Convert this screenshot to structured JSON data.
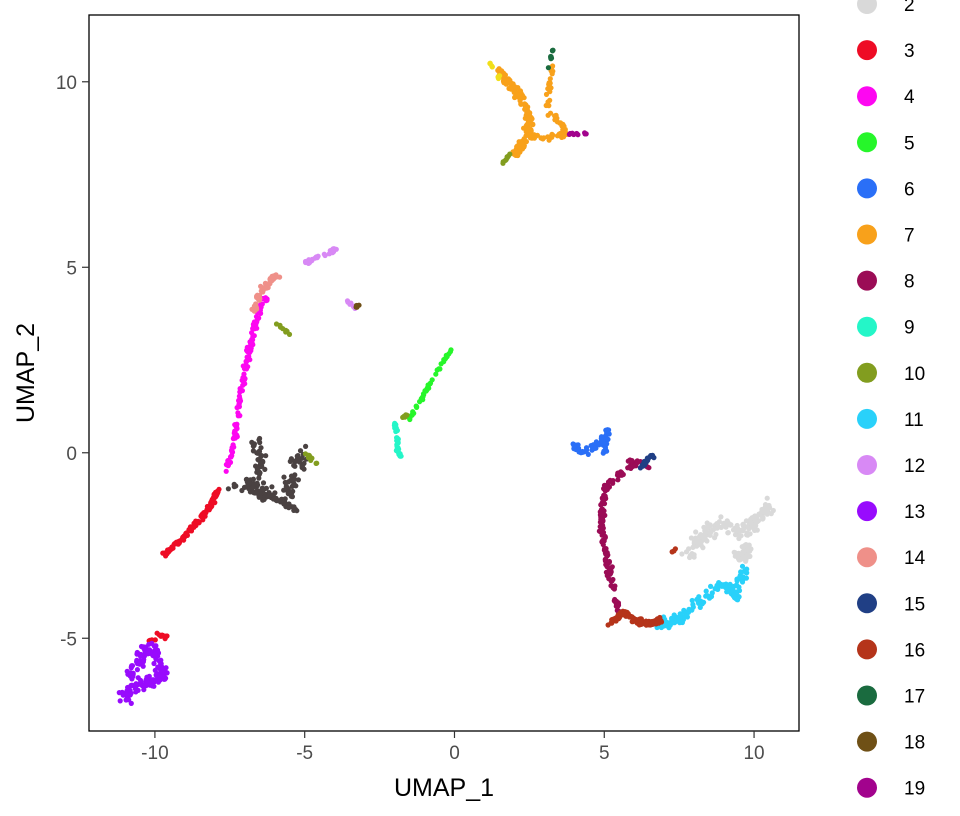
{
  "chart_data": {
    "type": "scatter",
    "xlabel": "UMAP_1",
    "ylabel": "UMAP_2",
    "xlim": [
      -12.2,
      11.5
    ],
    "ylim": [
      -7.5,
      11.8
    ],
    "x_ticks": [
      -10,
      -5,
      0,
      5,
      10
    ],
    "x_tick_labels": [
      "-10",
      "-5",
      "0",
      "5",
      "10"
    ],
    "y_ticks": [
      -5,
      0,
      5,
      10
    ],
    "y_tick_labels": [
      "-5",
      "0",
      "5",
      "10"
    ],
    "grid": false,
    "legend_position": "right",
    "legend": [
      {
        "label": "2",
        "color": "#d9d9d9"
      },
      {
        "label": "3",
        "color": "#ee0c25"
      },
      {
        "label": "4",
        "color": "#fd07f1"
      },
      {
        "label": "5",
        "color": "#26f62a"
      },
      {
        "label": "6",
        "color": "#2a6ff7"
      },
      {
        "label": "7",
        "color": "#f8a11b"
      },
      {
        "label": "8",
        "color": "#9b0c56"
      },
      {
        "label": "9",
        "color": "#24f6c8"
      },
      {
        "label": "10",
        "color": "#829d1f"
      },
      {
        "label": "11",
        "color": "#29d1fa"
      },
      {
        "label": "12",
        "color": "#d889f5"
      },
      {
        "label": "13",
        "color": "#980bfd"
      },
      {
        "label": "14",
        "color": "#ef9089"
      },
      {
        "label": "15",
        "color": "#203f85"
      },
      {
        "label": "16",
        "color": "#b5341a"
      },
      {
        "label": "17",
        "color": "#1a6b3f"
      },
      {
        "label": "18",
        "color": "#6f5016"
      },
      {
        "label": "19",
        "color": "#a2038d"
      }
    ],
    "extra_series_colors": {
      "1": "#4a4242"
    },
    "clusters": [
      {
        "name": "1",
        "color": "#4a4242",
        "n": 130,
        "polyline": [
          [
            -6.6,
            0.2
          ],
          [
            -6.4,
            -0.3
          ],
          [
            -6.8,
            -0.9
          ],
          [
            -6.2,
            -1.2
          ],
          [
            -5.6,
            -1.1
          ],
          [
            -5.3,
            -0.4
          ],
          [
            -5.0,
            0.0
          ]
        ],
        "spread": 0.35
      },
      {
        "name": "1b",
        "color": "#4a4242",
        "n": 40,
        "polyline": [
          [
            -7.5,
            -0.9
          ],
          [
            -6.8,
            -1.0
          ],
          [
            -5.8,
            -1.3
          ],
          [
            -5.2,
            -1.6
          ]
        ],
        "spread": 0.15
      },
      {
        "name": "2",
        "color": "#d9d9d9",
        "n": 150,
        "polyline": [
          [
            7.8,
            -2.7
          ],
          [
            8.4,
            -2.1
          ],
          [
            9.0,
            -1.9
          ],
          [
            9.6,
            -2.2
          ],
          [
            10.3,
            -1.6
          ],
          [
            10.6,
            -1.5
          ]
        ],
        "spread": 0.32
      },
      {
        "name": "2b",
        "color": "#d9d9d9",
        "n": 40,
        "polyline": [
          [
            9.4,
            -2.6
          ],
          [
            9.6,
            -2.9
          ],
          [
            9.8,
            -2.5
          ]
        ],
        "spread": 0.25
      },
      {
        "name": "3",
        "color": "#ee0c25",
        "n": 110,
        "polyline": [
          [
            -9.8,
            -2.8
          ],
          [
            -9.2,
            -2.4
          ],
          [
            -8.6,
            -1.9
          ],
          [
            -8.1,
            -1.4
          ],
          [
            -7.9,
            -1.0
          ]
        ],
        "spread": 0.1
      },
      {
        "name": "3b",
        "color": "#ee0c25",
        "n": 12,
        "polyline": [
          [
            -10.2,
            -5.1
          ],
          [
            -9.9,
            -4.9
          ],
          [
            -9.6,
            -5.0
          ]
        ],
        "spread": 0.1
      },
      {
        "name": "4",
        "color": "#fd07f1",
        "n": 120,
        "polyline": [
          [
            -7.6,
            -0.5
          ],
          [
            -7.3,
            0.5
          ],
          [
            -7.2,
            1.2
          ],
          [
            -7.0,
            2.2
          ],
          [
            -6.8,
            3.0
          ],
          [
            -6.6,
            3.6
          ],
          [
            -6.3,
            4.2
          ]
        ],
        "spread": 0.12
      },
      {
        "name": "5",
        "color": "#26f62a",
        "n": 45,
        "polyline": [
          [
            -1.5,
            0.9
          ],
          [
            -1.0,
            1.6
          ],
          [
            -0.5,
            2.3
          ],
          [
            -0.1,
            2.8
          ]
        ],
        "spread": 0.06
      },
      {
        "name": "6",
        "color": "#2a6ff7",
        "n": 70,
        "polyline": [
          [
            3.9,
            0.2
          ],
          [
            4.4,
            0.0
          ],
          [
            4.9,
            0.3
          ],
          [
            5.1,
            0.6
          ],
          [
            5.0,
            0.0
          ]
        ],
        "spread": 0.15
      },
      {
        "name": "7",
        "color": "#f8a11b",
        "n": 160,
        "polyline": [
          [
            1.5,
            10.3
          ],
          [
            2.2,
            9.6
          ],
          [
            2.5,
            9.1
          ],
          [
            2.4,
            8.5
          ],
          [
            2.0,
            8.0
          ]
        ],
        "spread": 0.18
      },
      {
        "name": "7b",
        "color": "#f8a11b",
        "n": 70,
        "polyline": [
          [
            2.4,
            8.6
          ],
          [
            3.0,
            8.5
          ],
          [
            3.8,
            8.6
          ],
          [
            3.1,
            9.3
          ],
          [
            3.2,
            10.2
          ],
          [
            3.3,
            10.5
          ]
        ],
        "spread": 0.12
      },
      {
        "name": "8",
        "color": "#9b0c56",
        "n": 150,
        "polyline": [
          [
            6.2,
            -0.2
          ],
          [
            5.6,
            -0.5
          ],
          [
            5.0,
            -1.0
          ],
          [
            4.9,
            -1.8
          ],
          [
            5.0,
            -2.6
          ],
          [
            5.2,
            -3.3
          ],
          [
            5.4,
            -4.0
          ],
          [
            5.5,
            -4.3
          ]
        ],
        "spread": 0.14
      },
      {
        "name": "8b",
        "color": "#9b0c56",
        "n": 12,
        "polyline": [
          [
            5.6,
            -0.3
          ],
          [
            6.0,
            -0.2
          ],
          [
            6.5,
            -0.4
          ]
        ],
        "spread": 0.08
      },
      {
        "name": "9",
        "color": "#24f6c8",
        "n": 35,
        "polyline": [
          [
            -2.0,
            0.8
          ],
          [
            -1.9,
            0.4
          ],
          [
            -1.9,
            0.0
          ],
          [
            -1.8,
            -0.1
          ]
        ],
        "spread": 0.06
      },
      {
        "name": "10",
        "color": "#829d1f",
        "n": 14,
        "polyline": [
          [
            -5.0,
            0.0
          ],
          [
            -4.6,
            -0.3
          ]
        ],
        "spread": 0.08
      },
      {
        "name": "10b",
        "color": "#829d1f",
        "n": 8,
        "polyline": [
          [
            1.6,
            7.8
          ],
          [
            1.9,
            8.1
          ]
        ],
        "spread": 0.06
      },
      {
        "name": "10c",
        "color": "#829d1f",
        "n": 6,
        "polyline": [
          [
            -1.8,
            0.9
          ],
          [
            -1.6,
            1.0
          ]
        ],
        "spread": 0.05
      },
      {
        "name": "10d",
        "color": "#829d1f",
        "n": 8,
        "polyline": [
          [
            -6.0,
            3.5
          ],
          [
            -5.5,
            3.2
          ]
        ],
        "spread": 0.06
      },
      {
        "name": "11",
        "color": "#29d1fa",
        "n": 140,
        "polyline": [
          [
            6.7,
            -4.6
          ],
          [
            7.5,
            -4.5
          ],
          [
            8.0,
            -4.1
          ],
          [
            8.6,
            -3.7
          ],
          [
            9.1,
            -3.5
          ],
          [
            9.4,
            -3.9
          ],
          [
            9.7,
            -3.1
          ]
        ],
        "spread": 0.22
      },
      {
        "name": "12",
        "color": "#d889f5",
        "n": 30,
        "polyline": [
          [
            -5.0,
            5.1
          ],
          [
            -4.5,
            5.3
          ],
          [
            -3.9,
            5.5
          ]
        ],
        "spread": 0.08
      },
      {
        "name": "12b",
        "color": "#d889f5",
        "n": 8,
        "polyline": [
          [
            -3.6,
            4.1
          ],
          [
            -3.3,
            3.9
          ]
        ],
        "spread": 0.05
      },
      {
        "name": "13",
        "color": "#980bfd",
        "n": 170,
        "polyline": [
          [
            -11.0,
            -6.6
          ],
          [
            -10.5,
            -6.2
          ],
          [
            -10.0,
            -6.2
          ],
          [
            -9.7,
            -6.0
          ],
          [
            -10.1,
            -5.2
          ],
          [
            -10.5,
            -5.5
          ],
          [
            -10.8,
            -6.0
          ]
        ],
        "spread": 0.28
      },
      {
        "name": "14",
        "color": "#ef9089",
        "n": 55,
        "polyline": [
          [
            -6.7,
            3.8
          ],
          [
            -6.5,
            4.3
          ],
          [
            -6.2,
            4.6
          ],
          [
            -5.9,
            4.8
          ]
        ],
        "spread": 0.14
      },
      {
        "name": "15",
        "color": "#203f85",
        "n": 20,
        "polyline": [
          [
            6.2,
            -0.4
          ],
          [
            6.5,
            -0.1
          ],
          [
            6.7,
            -0.1
          ]
        ],
        "spread": 0.07
      },
      {
        "name": "16",
        "color": "#b5341a",
        "n": 110,
        "polyline": [
          [
            5.2,
            -4.6
          ],
          [
            5.6,
            -4.3
          ],
          [
            6.0,
            -4.5
          ],
          [
            6.5,
            -4.6
          ],
          [
            6.9,
            -4.5
          ]
        ],
        "spread": 0.12
      },
      {
        "name": "16b",
        "color": "#b5341a",
        "n": 4,
        "polyline": [
          [
            7.2,
            -2.7
          ],
          [
            7.4,
            -2.6
          ]
        ],
        "spread": 0.05
      },
      {
        "name": "17",
        "color": "#1a6b3f",
        "n": 10,
        "polyline": [
          [
            3.1,
            10.3
          ],
          [
            3.3,
            10.9
          ]
        ],
        "spread": 0.04
      },
      {
        "name": "18",
        "color": "#6f5016",
        "n": 5,
        "polyline": [
          [
            -3.3,
            3.9
          ],
          [
            -3.2,
            4.0
          ]
        ],
        "spread": 0.04
      },
      {
        "name": "19",
        "color": "#a2038d",
        "n": 10,
        "polyline": [
          [
            3.8,
            8.6
          ],
          [
            4.4,
            8.6
          ]
        ],
        "spread": 0.04
      },
      {
        "name": "yellow",
        "color": "#f1df1a",
        "n": 10,
        "polyline": [
          [
            1.1,
            10.6
          ],
          [
            1.5,
            10.1
          ]
        ],
        "spread": 0.05
      }
    ]
  }
}
